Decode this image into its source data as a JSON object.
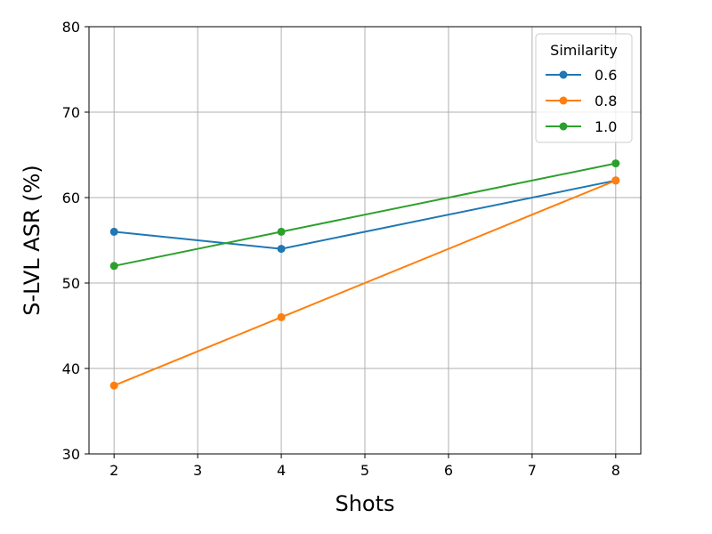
{
  "chart_data": {
    "type": "line",
    "title": "",
    "xlabel": "Shots",
    "ylabel": "S-LVL ASR (%)",
    "xlim": [
      1.7,
      8.3
    ],
    "ylim": [
      30,
      80
    ],
    "xticks": [
      2,
      3,
      4,
      5,
      6,
      7,
      8
    ],
    "yticks": [
      30,
      40,
      50,
      60,
      70,
      80
    ],
    "grid": true,
    "legend": {
      "title": "Similarity",
      "placement": "top-right"
    },
    "x": [
      2,
      4,
      8
    ],
    "series": [
      {
        "name": "0.6",
        "color": "#1f77b4",
        "values": [
          56,
          54,
          62
        ]
      },
      {
        "name": "0.8",
        "color": "#ff7f0e",
        "values": [
          38,
          46,
          62
        ]
      },
      {
        "name": "1.0",
        "color": "#2ca02c",
        "values": [
          52,
          56,
          64
        ]
      }
    ]
  }
}
